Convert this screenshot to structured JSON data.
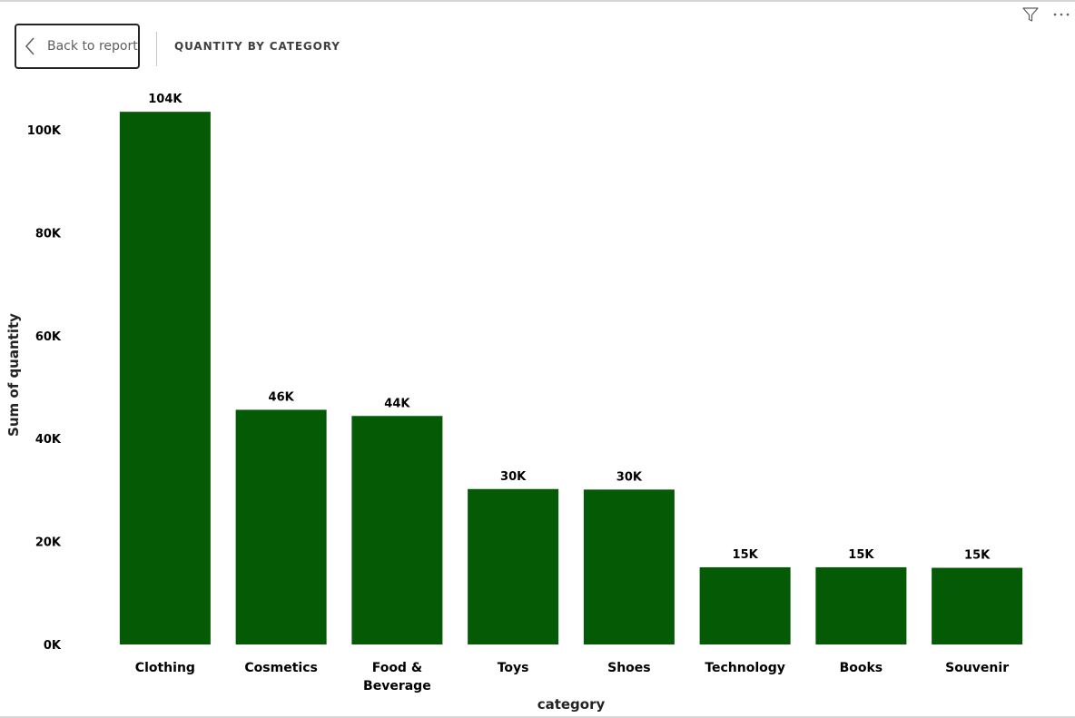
{
  "header": {
    "back_label": "Back to report",
    "title": "QUANTITY BY CATEGORY"
  },
  "icons": {
    "back": "chevron-left-icon",
    "filter": "filter-icon",
    "more": "more-options-icon"
  },
  "colors": {
    "bar": "#055a05"
  },
  "chart_data": {
    "type": "bar",
    "xlabel": "category",
    "ylabel": "Sum of quantity",
    "ylim": [
      0,
      110000
    ],
    "yticks": [
      0,
      20000,
      40000,
      60000,
      80000,
      100000
    ],
    "ytick_labels": [
      "0K",
      "20K",
      "40K",
      "60K",
      "80K",
      "100K"
    ],
    "categories": [
      "Clothing",
      "Cosmetics",
      "Food & Beverage",
      "Toys",
      "Shoes",
      "Technology",
      "Books",
      "Souvenir"
    ],
    "category_labels": [
      [
        "Clothing"
      ],
      [
        "Cosmetics"
      ],
      [
        "Food &",
        "Beverage"
      ],
      [
        "Toys"
      ],
      [
        "Shoes"
      ],
      [
        "Technology"
      ],
      [
        "Books"
      ],
      [
        "Souvenir"
      ]
    ],
    "values": [
      103500,
      45600,
      44400,
      30200,
      30100,
      15000,
      15000,
      14900
    ],
    "data_labels": [
      "104K",
      "46K",
      "44K",
      "30K",
      "30K",
      "15K",
      "15K",
      "15K"
    ],
    "grid": false,
    "legend": "none"
  }
}
